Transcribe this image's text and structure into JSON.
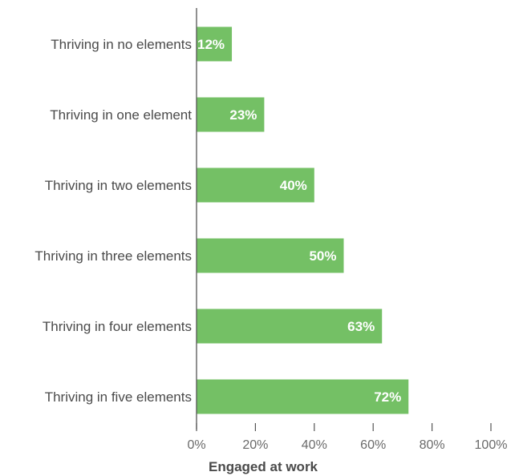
{
  "chart_data": {
    "type": "bar",
    "orientation": "horizontal",
    "categories": [
      "Thriving in no elements",
      "Thriving in one element",
      "Thriving in two elements",
      "Thriving in three elements",
      "Thriving in four elements",
      "Thriving in five elements"
    ],
    "values": [
      12,
      23,
      40,
      50,
      63,
      72
    ],
    "data_labels": [
      "12%",
      "23%",
      "40%",
      "50%",
      "63%",
      "72%"
    ],
    "xlabel": "Engaged at work",
    "xlim": [
      0,
      100
    ],
    "x_ticks": [
      0,
      20,
      40,
      60,
      80,
      100
    ],
    "x_tick_labels": [
      "0%",
      "20%",
      "40%",
      "60%",
      "80%",
      "100%"
    ],
    "grid": false,
    "bar_color": "#74c065"
  }
}
